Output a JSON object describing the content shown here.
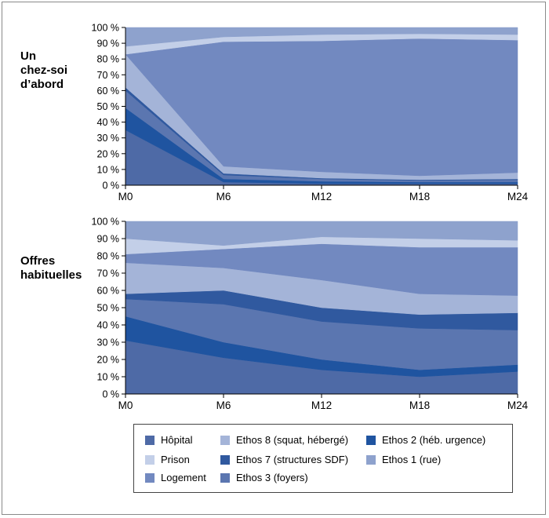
{
  "colors": {
    "hopital": "#4e6aa6",
    "ethos8": "#a4b4d8",
    "ethos2": "#1f54a0",
    "prison": "#c3cfe8",
    "ethos7": "#30599f",
    "ethos1": "#8ea2cd",
    "logement": "#7289c0",
    "ethos3": "#5b76b0"
  },
  "legend": {
    "items": [
      {
        "key": "hopital",
        "label": "Hôpital"
      },
      {
        "key": "ethos8",
        "label": "Ethos 8 (squat, hébergé)"
      },
      {
        "key": "ethos2",
        "label": "Ethos 2 (héb. urgence)"
      },
      {
        "key": "prison",
        "label": "Prison"
      },
      {
        "key": "ethos7",
        "label": "Ethos 7 (structures SDF)"
      },
      {
        "key": "ethos1",
        "label": "Ethos 1 (rue)"
      },
      {
        "key": "logement",
        "label": "Logement"
      },
      {
        "key": "ethos3",
        "label": "Ethos 3 (foyers)"
      }
    ]
  },
  "chart_data": [
    {
      "type": "area",
      "stacked": true,
      "title": "Un chez-soi d’abord",
      "x": [
        "M0",
        "M6",
        "M12",
        "M18",
        "M24"
      ],
      "ylim": [
        0,
        100
      ],
      "yticks": [
        "0 %",
        "10 %",
        "20 %",
        "30 %",
        "40 %",
        "50 %",
        "60 %",
        "70 %",
        "80 %",
        "90 %",
        "100 %"
      ],
      "grid": true,
      "series": [
        {
          "name": "Hôpital",
          "key": "hopital",
          "values": [
            35,
            2,
            1,
            1,
            1
          ]
        },
        {
          "name": "Ethos 2 (héb. urgence)",
          "key": "ethos2",
          "values": [
            14,
            2,
            1.5,
            1,
            1
          ]
        },
        {
          "name": "Ethos 3 (foyers)",
          "key": "ethos3",
          "values": [
            11,
            2.5,
            1.5,
            1,
            1.5
          ]
        },
        {
          "name": "Ethos 7 (structures SDF)",
          "key": "ethos7",
          "values": [
            2,
            1,
            0.5,
            0.5,
            0.5
          ]
        },
        {
          "name": "Ethos 8 (squat, hébergé)",
          "key": "ethos8",
          "values": [
            21,
            4.5,
            4,
            2.5,
            4
          ]
        },
        {
          "name": "Logement",
          "key": "logement",
          "values": [
            0,
            79,
            83,
            87,
            84
          ]
        },
        {
          "name": "Prison",
          "key": "prison",
          "values": [
            5,
            3,
            4,
            3,
            3.5
          ]
        },
        {
          "name": "Ethos 1 (rue)",
          "key": "ethos1",
          "values": [
            12,
            6,
            4.5,
            4,
            4.5
          ]
        }
      ]
    },
    {
      "type": "area",
      "stacked": true,
      "title": "Offres habituelles",
      "x": [
        "M0",
        "M6",
        "M12",
        "M18",
        "M24"
      ],
      "ylim": [
        0,
        100
      ],
      "yticks": [
        "0 %",
        "10 %",
        "20 %",
        "30 %",
        "40 %",
        "50 %",
        "60 %",
        "70 %",
        "80 %",
        "90 %",
        "100 %"
      ],
      "grid": true,
      "series": [
        {
          "name": "Hôpital",
          "key": "hopital",
          "values": [
            31,
            21,
            14,
            10,
            13
          ]
        },
        {
          "name": "Ethos 2 (héb. urgence)",
          "key": "ethos2",
          "values": [
            14,
            9,
            6,
            4,
            4
          ]
        },
        {
          "name": "Ethos 3 (foyers)",
          "key": "ethos3",
          "values": [
            10,
            22,
            22,
            24,
            20
          ]
        },
        {
          "name": "Ethos 7 (structures SDF)",
          "key": "ethos7",
          "values": [
            3,
            8,
            8,
            8,
            10
          ]
        },
        {
          "name": "Ethos 8 (squat, hébergé)",
          "key": "ethos8",
          "values": [
            18,
            13,
            16,
            12,
            10
          ]
        },
        {
          "name": "Logement",
          "key": "logement",
          "values": [
            5,
            11,
            21,
            27,
            28
          ]
        },
        {
          "name": "Prison",
          "key": "prison",
          "values": [
            9,
            2,
            4,
            5,
            4
          ]
        },
        {
          "name": "Ethos 1 (rue)",
          "key": "ethos1",
          "values": [
            10,
            14,
            9,
            10,
            11
          ]
        }
      ]
    }
  ]
}
